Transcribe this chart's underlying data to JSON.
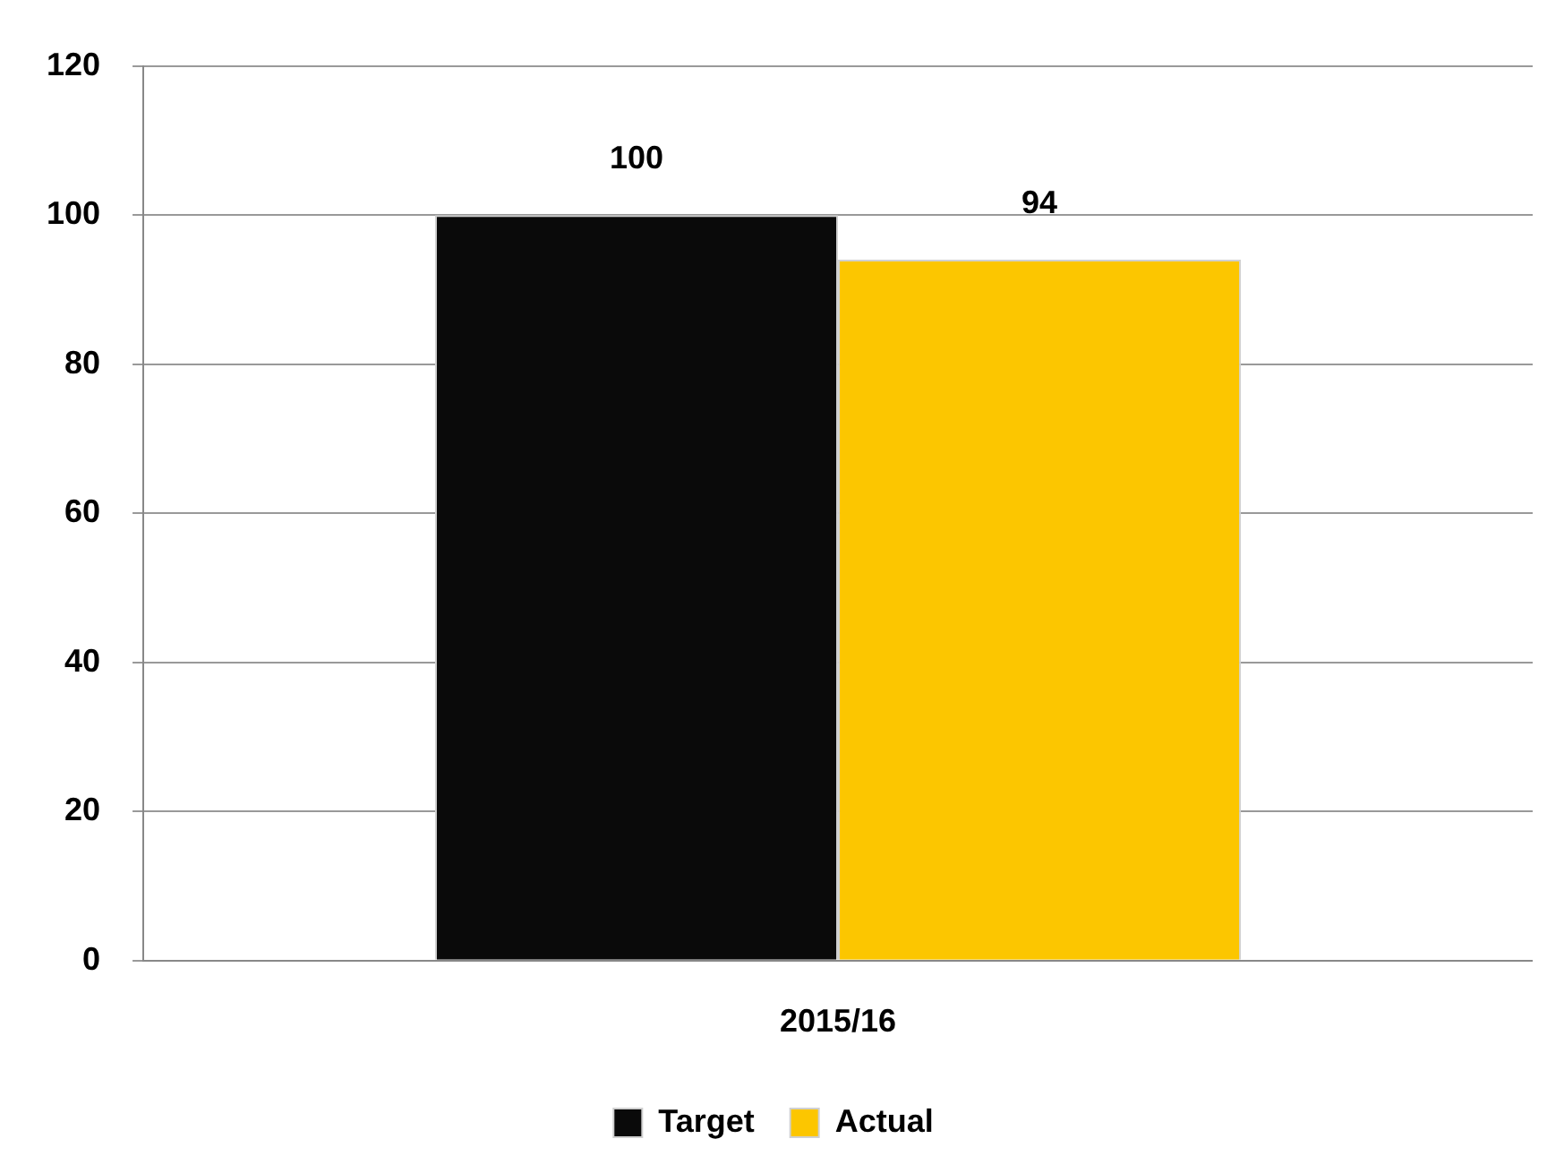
{
  "chart_data": {
    "type": "bar",
    "categories": [
      "2015/16"
    ],
    "series": [
      {
        "name": "Target",
        "color": "#0a0a0a",
        "values": [
          100
        ]
      },
      {
        "name": "Actual",
        "color": "#fcc600",
        "values": [
          94
        ]
      }
    ],
    "ylim": [
      0,
      120
    ],
    "yticks": [
      0,
      20,
      40,
      60,
      80,
      100,
      120
    ],
    "grid": "y",
    "legend": "bottom",
    "data_labels": true
  }
}
